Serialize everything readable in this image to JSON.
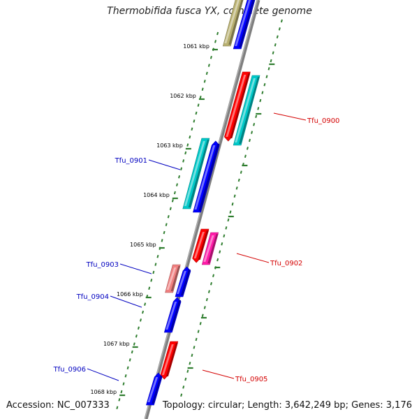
{
  "title": "Thermobifida fusca YX, complete genome",
  "accession": "Accession: NC_007333",
  "summary": "Topology: circular; Length: 3,642,249 bp; Genes: 3,176",
  "scale_labels": [
    "1061 kbp",
    "1062 kbp",
    "1063 kbp",
    "1064 kbp",
    "1065 kbp",
    "1066 kbp",
    "1067 kbp",
    "1068 kbp"
  ],
  "gene_labels": [
    {
      "text": "Tfu_0900",
      "color": "#d40000"
    },
    {
      "text": "Tfu_0901",
      "color": "#0000c0"
    },
    {
      "text": "Tfu_0902",
      "color": "#d40000"
    },
    {
      "text": "Tfu_0903",
      "color": "#0000c0"
    },
    {
      "text": "Tfu_0904",
      "color": "#0000c0"
    },
    {
      "text": "Tfu_0905",
      "color": "#d40000"
    },
    {
      "text": "Tfu_0906",
      "color": "#0000c0"
    }
  ],
  "colors": {
    "backbone": "#7f7f7f",
    "tick": "#2e7d2e",
    "red": "#ff0000",
    "blue": "#0000ff",
    "cyan": "#00c8c8",
    "pink": "#f08080",
    "magenta": "#ff1aa8",
    "olive": "#b8b070"
  }
}
